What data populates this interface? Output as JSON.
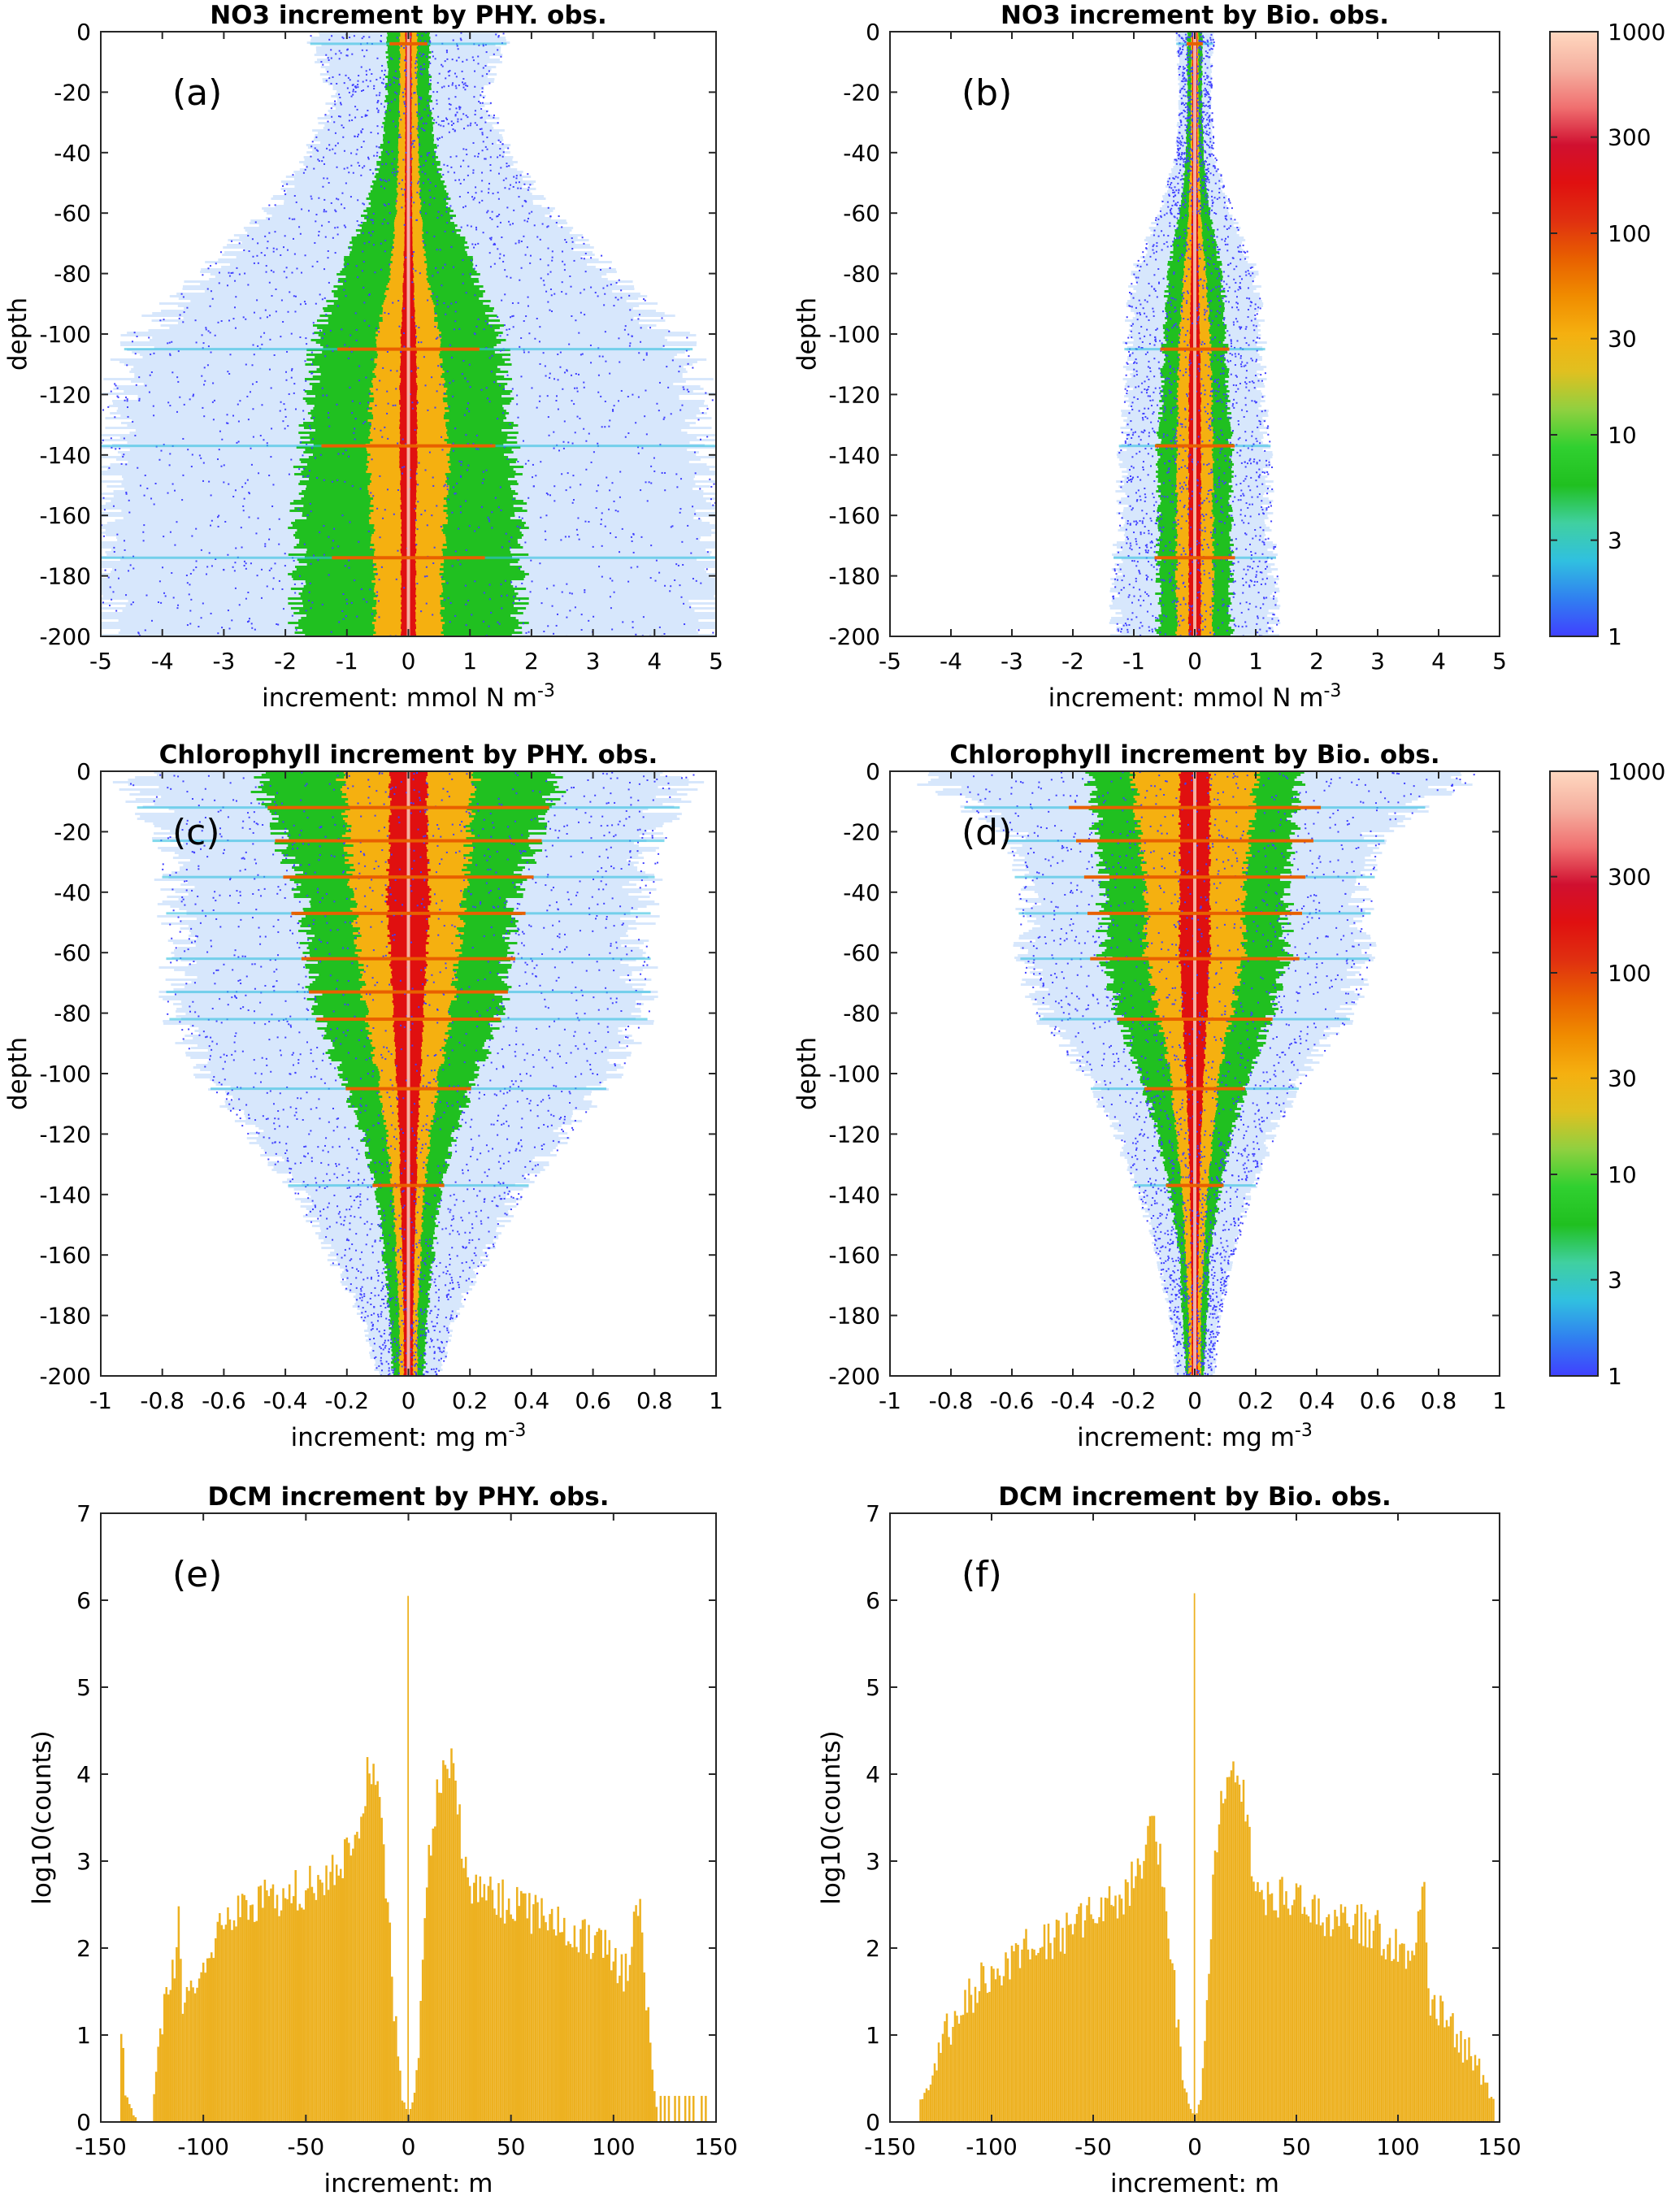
{
  "chart_data": [
    {
      "id": "a",
      "type": "heatmap",
      "title": "NO3 increment by PHY. obs.",
      "panel_label": "(a)",
      "xlabel": "increment: mmol N m",
      "xlabel_sup": "-3",
      "ylabel": "depth",
      "xlim": [
        -5,
        5
      ],
      "ylim": [
        -200,
        0
      ],
      "xticks": [
        -5,
        -4,
        -3,
        -2,
        -1,
        0,
        1,
        2,
        3,
        4,
        5
      ],
      "xtick_labels": [
        "-5",
        "-4",
        "-3",
        "-2",
        "-1",
        "0",
        "1",
        "2",
        "3",
        "4",
        "5"
      ],
      "yticks": [
        0,
        -20,
        -40,
        -60,
        -80,
        -100,
        -120,
        -140,
        -160,
        -180,
        -200
      ],
      "ytick_labels": [
        "0",
        "-20",
        "-40",
        "-60",
        "-80",
        "-100",
        "-120",
        "-140",
        "-160",
        "-180",
        "-200"
      ],
      "color_scale": "log10 counts",
      "profile": {
        "depth": [
          0,
          -20,
          -40,
          -60,
          -80,
          -100,
          -120,
          -140,
          -160,
          -180,
          -200
        ],
        "blue_halfwidth": [
          1.6,
          1.2,
          1.6,
          2.3,
          3.3,
          4.3,
          4.7,
          5.0,
          5.0,
          5.0,
          5.0
        ],
        "green_halfwidth": [
          0.35,
          0.35,
          0.45,
          0.7,
          1.1,
          1.5,
          1.6,
          1.7,
          1.8,
          1.8,
          1.8
        ],
        "orange_halfwidth": [
          0.14,
          0.14,
          0.16,
          0.2,
          0.3,
          0.5,
          0.6,
          0.65,
          0.6,
          0.55,
          0.55
        ],
        "red_halfwidth": [
          0.05,
          0.05,
          0.05,
          0.06,
          0.08,
          0.12,
          0.14,
          0.14,
          0.12,
          0.12,
          0.12
        ],
        "streak_depths": [
          -4,
          -105,
          -137,
          -174
        ]
      }
    },
    {
      "id": "b",
      "type": "heatmap",
      "title": "NO3 increment by Bio. obs.",
      "panel_label": "(b)",
      "xlabel": "increment: mmol N m",
      "xlabel_sup": "-3",
      "ylabel": "depth",
      "xlim": [
        -5,
        5
      ],
      "ylim": [
        -200,
        0
      ],
      "xticks": [
        -5,
        -4,
        -3,
        -2,
        -1,
        0,
        1,
        2,
        3,
        4,
        5
      ],
      "xtick_labels": [
        "-5",
        "-4",
        "-3",
        "-2",
        "-1",
        "0",
        "1",
        "2",
        "3",
        "4",
        "5"
      ],
      "yticks": [
        0,
        -20,
        -40,
        -60,
        -80,
        -100,
        -120,
        -140,
        -160,
        -180,
        -200
      ],
      "ytick_labels": [
        "0",
        "-20",
        "-40",
        "-60",
        "-80",
        "-100",
        "-120",
        "-140",
        "-160",
        "-180",
        "-200"
      ],
      "color_scale": "log10 counts",
      "profile": {
        "depth": [
          0,
          -20,
          -40,
          -60,
          -80,
          -100,
          -120,
          -140,
          -160,
          -180,
          -200
        ],
        "blue_halfwidth": [
          0.3,
          0.25,
          0.3,
          0.6,
          1.0,
          1.1,
          1.1,
          1.2,
          1.2,
          1.3,
          1.3
        ],
        "green_halfwidth": [
          0.12,
          0.12,
          0.14,
          0.25,
          0.45,
          0.5,
          0.55,
          0.6,
          0.6,
          0.6,
          0.6
        ],
        "orange_halfwidth": [
          0.06,
          0.06,
          0.07,
          0.1,
          0.18,
          0.25,
          0.28,
          0.3,
          0.3,
          0.3,
          0.3
        ],
        "red_halfwidth": [
          0.04,
          0.04,
          0.04,
          0.05,
          0.06,
          0.08,
          0.1,
          0.1,
          0.1,
          0.1,
          0.1
        ],
        "streak_depths": [
          -4,
          -105,
          -137,
          -174
        ]
      }
    },
    {
      "id": "c",
      "type": "heatmap",
      "title": "Chlorophyll increment by PHY. obs.",
      "panel_label": "(c)",
      "xlabel": "increment: mg m",
      "xlabel_sup": "-3",
      "ylabel": "depth",
      "xlim": [
        -1,
        1
      ],
      "ylim": [
        -200,
        0
      ],
      "xticks": [
        -1,
        -0.8,
        -0.6,
        -0.4,
        -0.2,
        0,
        0.2,
        0.4,
        0.6,
        0.8,
        1
      ],
      "xtick_labels": [
        "-1",
        "-0.8",
        "-0.6",
        "-0.4",
        "-0.2",
        "0",
        "0.2",
        "0.4",
        "0.6",
        "0.8",
        "1"
      ],
      "yticks": [
        0,
        -20,
        -40,
        -60,
        -80,
        -100,
        -120,
        -140,
        -160,
        -180,
        -200
      ],
      "ytick_labels": [
        "0",
        "-20",
        "-40",
        "-60",
        "-80",
        "-100",
        "-120",
        "-140",
        "-160",
        "-180",
        "-200"
      ],
      "color_scale": "log10 counts",
      "profile": {
        "depth": [
          0,
          -20,
          -40,
          -60,
          -80,
          -100,
          -120,
          -140,
          -160,
          -180,
          -200
        ],
        "blue_halfwidth": [
          0.9,
          0.8,
          0.75,
          0.75,
          0.75,
          0.65,
          0.5,
          0.35,
          0.25,
          0.15,
          0.1
        ],
        "green_halfwidth": [
          0.5,
          0.42,
          0.35,
          0.32,
          0.3,
          0.22,
          0.15,
          0.1,
          0.08,
          0.06,
          0.05
        ],
        "orange_halfwidth": [
          0.22,
          0.2,
          0.18,
          0.16,
          0.14,
          0.1,
          0.07,
          0.05,
          0.04,
          0.03,
          0.03
        ],
        "red_halfwidth": [
          0.06,
          0.06,
          0.07,
          0.06,
          0.05,
          0.04,
          0.03,
          0.025,
          0.02,
          0.015,
          0.015
        ],
        "streak_depths": [
          -12,
          -23,
          -35,
          -47,
          -62,
          -73,
          -82,
          -105,
          -137
        ]
      }
    },
    {
      "id": "d",
      "type": "heatmap",
      "title": "Chlorophyll increment by Bio. obs.",
      "panel_label": "(d)",
      "xlabel": "increment: mg m",
      "xlabel_sup": "-3",
      "ylabel": "depth",
      "xlim": [
        -1,
        1
      ],
      "ylim": [
        -200,
        0
      ],
      "xticks": [
        -1,
        -0.8,
        -0.6,
        -0.4,
        -0.2,
        0,
        0.2,
        0.4,
        0.6,
        0.8,
        1
      ],
      "xtick_labels": [
        "-1",
        "-0.8",
        "-0.6",
        "-0.4",
        "-0.2",
        "0",
        "0.2",
        "0.4",
        "0.6",
        "0.8",
        "1"
      ],
      "yticks": [
        0,
        -20,
        -40,
        -60,
        -80,
        -100,
        -120,
        -140,
        -160,
        -180,
        -200
      ],
      "ytick_labels": [
        "0",
        "-20",
        "-40",
        "-60",
        "-80",
        "-100",
        "-120",
        "-140",
        "-160",
        "-180",
        "-200"
      ],
      "color_scale": "log10 counts",
      "profile": {
        "depth": [
          0,
          -20,
          -40,
          -60,
          -80,
          -100,
          -120,
          -140,
          -160,
          -180,
          -200
        ],
        "blue_halfwidth": [
          0.9,
          0.6,
          0.55,
          0.55,
          0.5,
          0.35,
          0.25,
          0.18,
          0.12,
          0.08,
          0.06
        ],
        "green_halfwidth": [
          0.35,
          0.32,
          0.3,
          0.3,
          0.25,
          0.18,
          0.12,
          0.08,
          0.05,
          0.04,
          0.03
        ],
        "orange_halfwidth": [
          0.2,
          0.18,
          0.16,
          0.16,
          0.12,
          0.08,
          0.06,
          0.04,
          0.03,
          0.02,
          0.02
        ],
        "red_halfwidth": [
          0.05,
          0.05,
          0.05,
          0.05,
          0.04,
          0.03,
          0.02,
          0.015,
          0.012,
          0.01,
          0.01
        ],
        "streak_depths": [
          -12,
          -23,
          -35,
          -47,
          -62,
          -82,
          -105,
          -137
        ]
      }
    },
    {
      "id": "e",
      "type": "bar",
      "title": "DCM increment by PHY. obs.",
      "panel_label": "(e)",
      "xlabel": "increment: m",
      "ylabel": "log10(counts)",
      "xlim": [
        -150,
        150
      ],
      "ylim": [
        0,
        7
      ],
      "xticks": [
        -150,
        -100,
        -50,
        0,
        50,
        100,
        150
      ],
      "xtick_labels": [
        "-150",
        "-100",
        "-50",
        "0",
        "50",
        "100",
        "150"
      ],
      "yticks": [
        0,
        1,
        2,
        3,
        4,
        5,
        6,
        7
      ],
      "ytick_labels": [
        "0",
        "1",
        "2",
        "3",
        "4",
        "5",
        "6",
        "7"
      ],
      "bin_width": 1,
      "bar_color": "#EDB120",
      "profile_x": [
        -140,
        -138,
        -132,
        -130,
        -125,
        -122,
        -120,
        -116,
        -114,
        -112,
        -110,
        -105,
        -100,
        -95,
        -90,
        -80,
        -70,
        -60,
        -50,
        -40,
        -35,
        -30,
        -25,
        -22,
        -20,
        -18,
        -15,
        -12,
        -10,
        -7,
        -5,
        -3,
        -1,
        0,
        1,
        3,
        5,
        7,
        10,
        13,
        16,
        18,
        20,
        22,
        24,
        27,
        30,
        35,
        40,
        50,
        60,
        70,
        80,
        90,
        100,
        105,
        108,
        110,
        112,
        114,
        116,
        118,
        120,
        122
      ],
      "profile_y": [
        1.1,
        0.3,
        0,
        0,
        0,
        0.8,
        1.2,
        1.5,
        1.8,
        2.3,
        1.3,
        1.6,
        1.9,
        2.1,
        2.3,
        2.5,
        2.55,
        2.6,
        2.7,
        2.8,
        2.9,
        3.1,
        3.4,
        3.6,
        4.0,
        4.1,
        3.8,
        3.1,
        2.4,
        1.4,
        0.7,
        0.3,
        0.15,
        6.05,
        0.15,
        0.3,
        0.8,
        1.8,
        3.0,
        3.6,
        3.9,
        4.1,
        4.15,
        4.0,
        3.6,
        3.1,
        2.8,
        2.6,
        2.6,
        2.5,
        2.4,
        2.35,
        2.2,
        2.05,
        1.9,
        1.7,
        1.8,
        2.4,
        2.5,
        2.3,
        1.3,
        0.9,
        0.4,
        0
      ],
      "sparse_bins": [
        123,
        125,
        127,
        130,
        132,
        135,
        137,
        139,
        143,
        145
      ],
      "sparse_values": [
        0.3,
        0.3,
        0.3,
        0.3,
        0.3,
        0.3,
        0.3,
        0.3,
        0.3,
        0.3
      ]
    },
    {
      "id": "f",
      "type": "bar",
      "title": "DCM increment by Bio. obs.",
      "panel_label": "(f)",
      "xlabel": "increment: m",
      "ylabel": "log10(counts)",
      "xlim": [
        -150,
        150
      ],
      "ylim": [
        0,
        7
      ],
      "xticks": [
        -150,
        -100,
        -50,
        0,
        50,
        100,
        150
      ],
      "xtick_labels": [
        "-150",
        "-100",
        "-50",
        "0",
        "50",
        "100",
        "150"
      ],
      "yticks": [
        0,
        1,
        2,
        3,
        4,
        5,
        6,
        7
      ],
      "ytick_labels": [
        "0",
        "1",
        "2",
        "3",
        "4",
        "5",
        "6",
        "7"
      ],
      "bin_width": 1,
      "bar_color": "#EDB120",
      "profile_x": [
        -135,
        -133,
        -128,
        -125,
        -122,
        -120,
        -115,
        -112,
        -110,
        -105,
        -100,
        -95,
        -90,
        -80,
        -70,
        -60,
        -50,
        -40,
        -35,
        -30,
        -25,
        -22,
        -20,
        -18,
        -15,
        -12,
        -10,
        -7,
        -5,
        -3,
        -1,
        0,
        1,
        3,
        5,
        7,
        10,
        13,
        16,
        18,
        20,
        22,
        24,
        27,
        30,
        35,
        40,
        50,
        60,
        70,
        80,
        90,
        100,
        105,
        110,
        113,
        115,
        118,
        120,
        125,
        130,
        135,
        140,
        143,
        145,
        147
      ],
      "profile_y": [
        0.3,
        0.3,
        0.6,
        0.9,
        1.0,
        1.1,
        1.3,
        1.5,
        1.4,
        1.6,
        1.7,
        1.8,
        1.9,
        2.0,
        2.1,
        2.2,
        2.4,
        2.5,
        2.6,
        2.8,
        3.0,
        3.3,
        3.4,
        3.2,
        2.6,
        2.0,
        1.5,
        0.8,
        0.4,
        0.2,
        0.1,
        6.08,
        0.1,
        0.3,
        0.8,
        1.8,
        3.0,
        3.6,
        3.9,
        4.1,
        4.15,
        4.0,
        3.7,
        3.2,
        2.8,
        2.6,
        2.6,
        2.5,
        2.4,
        2.3,
        2.3,
        2.2,
        2.0,
        1.9,
        2.3,
        2.6,
        1.5,
        1.4,
        1.3,
        1.1,
        0.9,
        0.8,
        0.6,
        0.5,
        0.3,
        0.3
      ],
      "sparse_bins": [],
      "sparse_values": []
    }
  ],
  "colorbars": [
    {
      "id": "cb1",
      "scale": "log",
      "range": [
        1,
        1000
      ],
      "ticks": [
        1,
        3,
        10,
        30,
        100,
        300,
        1000
      ],
      "tick_labels": [
        "1",
        "3",
        "10",
        "30",
        "100",
        "300",
        "1000"
      ]
    },
    {
      "id": "cb2",
      "scale": "log",
      "range": [
        1,
        1000
      ],
      "ticks": [
        1,
        3,
        10,
        30,
        100,
        300,
        1000
      ],
      "tick_labels": [
        "1",
        "3",
        "10",
        "30",
        "100",
        "300",
        "1000"
      ]
    }
  ],
  "colormap": [
    "#4040FF",
    "#3080F0",
    "#30C0E0",
    "#40D0A0",
    "#20C020",
    "#30D030",
    "#90D040",
    "#E0C020",
    "#F5B010",
    "#F08C00",
    "#E86000",
    "#E03010",
    "#E01010",
    "#D01030",
    "#F07070",
    "#F5B0A0",
    "#FFD8C0"
  ],
  "bar_color": "#EDB120",
  "axis_color": "#262626"
}
